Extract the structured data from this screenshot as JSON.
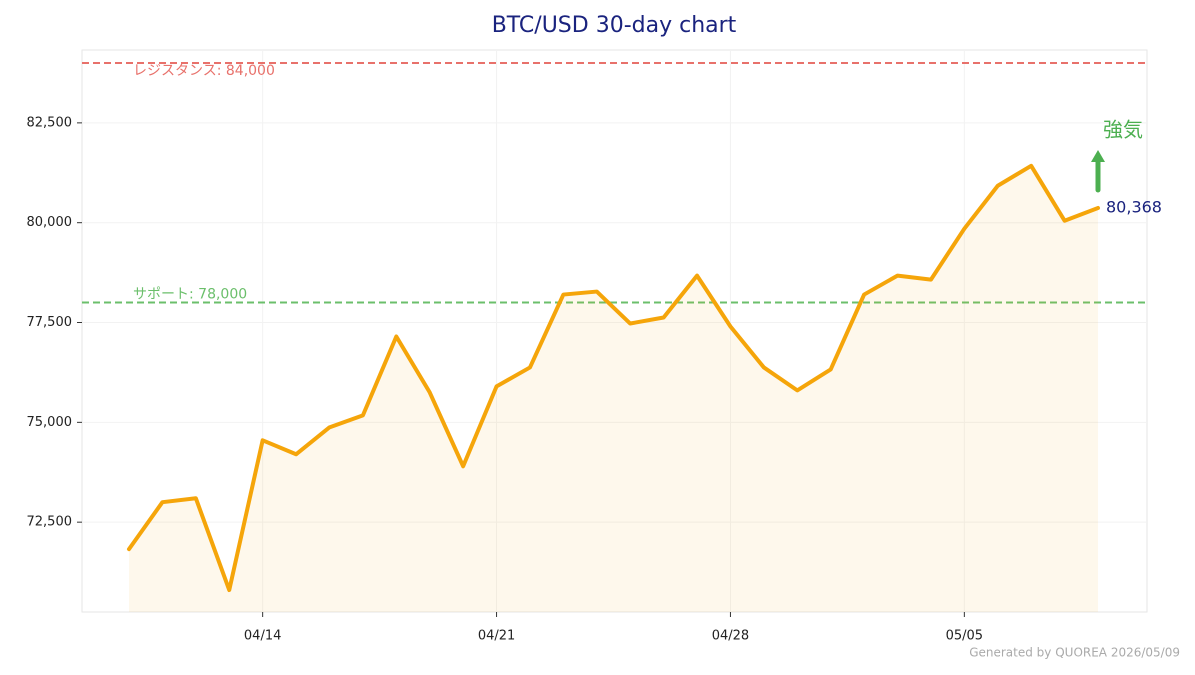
{
  "chart_data": {
    "type": "line",
    "title": "BTC/USD  30-day chart",
    "categories": [
      null,
      null,
      null,
      null,
      "04/14",
      null,
      null,
      null,
      null,
      null,
      null,
      "04/21",
      null,
      null,
      null,
      null,
      null,
      null,
      "04/28",
      null,
      null,
      null,
      null,
      null,
      null,
      "05/05",
      null,
      null,
      null,
      null
    ],
    "series": [
      {
        "name": "BTC/USD",
        "color": "#f5a50a",
        "values": [
          71825,
          73000,
          73100,
          70800,
          74550,
          74200,
          74875,
          75175,
          77150,
          75750,
          73900,
          75900,
          76375,
          78200,
          78275,
          77475,
          77625,
          78675,
          77400,
          76375,
          75800,
          76325,
          78200,
          78675,
          78575,
          79850,
          80925,
          81425,
          80050,
          80368
        ],
        "value_labels": [
          null,
          null,
          null,
          null,
          null,
          null,
          null,
          null,
          null,
          null,
          null,
          null,
          null,
          null,
          null,
          null,
          null,
          null,
          null,
          null,
          null,
          null,
          null,
          null,
          null,
          null,
          null,
          null,
          null,
          "80,368"
        ]
      }
    ],
    "ylim": [
      70250,
      84325
    ],
    "yticks": [
      {
        "value": 72500,
        "label": "72,500"
      },
      {
        "value": 75000,
        "label": "75,000"
      },
      {
        "value": 77500,
        "label": "77,500"
      },
      {
        "value": 80000,
        "label": "80,000"
      },
      {
        "value": 82500,
        "label": "82,500"
      }
    ],
    "grid": true,
    "reference_lines": [
      {
        "value": 84000,
        "label": "レジスタンス: 84,000",
        "color": "#e8716b"
      },
      {
        "value": 78000,
        "label": "サポート: 78,000",
        "color": "#6bbf6b"
      }
    ],
    "annotation": {
      "text": "強気",
      "color": "#4caf50"
    },
    "footer": "Generated by QUOREA  2026/05/09"
  }
}
